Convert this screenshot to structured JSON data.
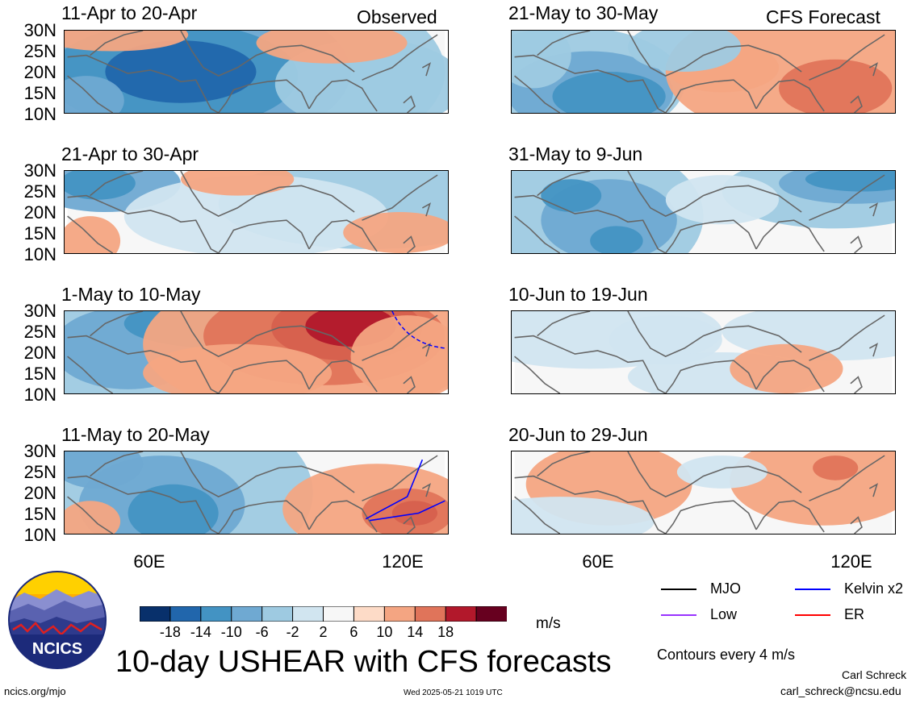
{
  "tags": {
    "observed": "Observed",
    "forecast": "CFS Forecast"
  },
  "left_panels": [
    {
      "title": "11-Apr to 20-Apr",
      "pattern": "neg_west"
    },
    {
      "title": "21-Apr to 30-Apr",
      "pattern": "mild_mixed"
    },
    {
      "title": "1-May to 10-May",
      "pattern": "pos_band"
    },
    {
      "title": "11-May to 20-May",
      "pattern": "neg_pos_east"
    }
  ],
  "right_panels": [
    {
      "title": "21-May to 30-May",
      "pattern": "neg_sw_pos_east"
    },
    {
      "title": "31-May to 9-Jun",
      "pattern": "neg_broad"
    },
    {
      "title": "10-Jun to 19-Jun",
      "pattern": "weak"
    },
    {
      "title": "20-Jun to 29-Jun",
      "pattern": "weak_pos"
    }
  ],
  "lat_labels": [
    "30N",
    "25N",
    "20N",
    "15N",
    "10N"
  ],
  "lon_labels": [
    "60E",
    "120E"
  ],
  "colorbar": {
    "labels": [
      "-18",
      "-14",
      "-10",
      "-6",
      "-2",
      "2",
      "6",
      "10",
      "14",
      "18"
    ],
    "colors": [
      "#08306b",
      "#2166ac",
      "#4393c3",
      "#6fa9d2",
      "#9ecae1",
      "#d1e5f0",
      "#f7f7f7",
      "#fddbc7",
      "#f4a582",
      "#e0745a",
      "#d6604d",
      "#b2182b",
      "#67001f"
    ],
    "unit": "m/s"
  },
  "legend": [
    {
      "label": "MJO",
      "color": "#000000"
    },
    {
      "label": "Kelvin x2",
      "color": "#0000ff"
    },
    {
      "label": "Low",
      "color": "#9933ff"
    },
    {
      "label": "ER",
      "color": "#ff0000"
    }
  ],
  "contours_note": "Contours every 4 m/s",
  "main_title": "10-day USHEAR with CFS forecasts",
  "logo_text": "NCICS",
  "footer": {
    "website": "ncics.org/mjo",
    "timestamp": "Wed 2025-05-21 1019 UTC",
    "author": "Carl Schreck",
    "email": "carl_schreck@ncsu.edu"
  }
}
